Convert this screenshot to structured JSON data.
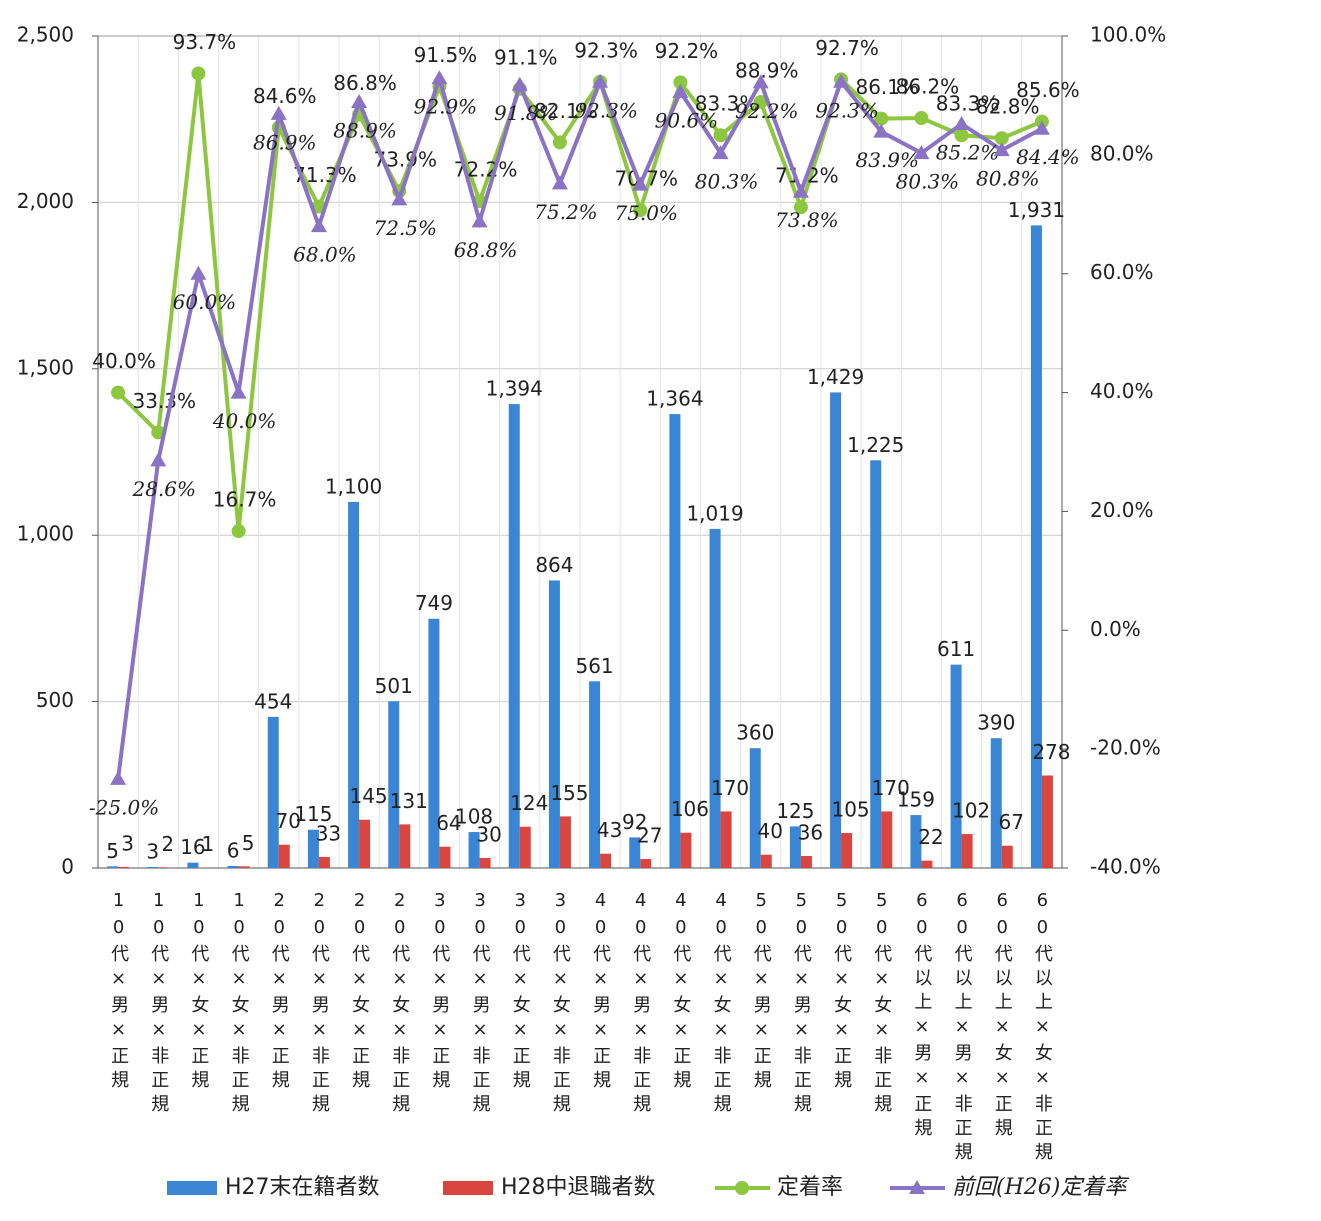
{
  "chart_data": {
    "type": "bar",
    "categories": [
      "10代×男×正規",
      "10代×男×非正規",
      "10代×女×正規",
      "10代×女×非正規",
      "20代×男×正規",
      "20代×男×非正規",
      "20代×女×正規",
      "20代×女×非正規",
      "30代×男×正規",
      "30代×男×非正規",
      "30代×女×正規",
      "30代×女×非正規",
      "40代×男×正規",
      "40代×男×非正規",
      "40代×女×正規",
      "40代×女×非正規",
      "50代×男×正規",
      "50代×男×非正規",
      "50代×女×正規",
      "50代×女×非正規",
      "60代以上×男×正規",
      "60代以上×男×非正規",
      "60代以上×女×正規",
      "60代以上×女×非正規"
    ],
    "series": [
      {
        "name": "H27末在籍者数",
        "type": "bar",
        "color": "#3a86d4",
        "values": [
          5,
          3,
          16,
          6,
          454,
          115,
          1100,
          501,
          749,
          108,
          1394,
          864,
          561,
          92,
          1364,
          1019,
          360,
          125,
          1429,
          1225,
          159,
          611,
          390,
          1931
        ],
        "value_labels": [
          "5",
          "3",
          "16",
          "6",
          "454",
          "115",
          "1,100",
          "501",
          "749",
          "108",
          "1,394",
          "864",
          "561",
          "92",
          "1,364",
          "1,019",
          "360",
          "125",
          "1,429",
          "1,225",
          "159",
          "611",
          "390",
          "1,931"
        ]
      },
      {
        "name": "H28中退職者数",
        "type": "bar",
        "color": "#d9453f",
        "values": [
          3,
          2,
          1,
          5,
          70,
          33,
          145,
          131,
          64,
          30,
          124,
          155,
          43,
          27,
          106,
          170,
          40,
          36,
          105,
          170,
          22,
          102,
          67,
          278
        ]
      },
      {
        "name": "定着率",
        "type": "line",
        "axis": "y2",
        "color": "#8dc63f",
        "values": [
          40.0,
          33.3,
          93.7,
          16.7,
          84.6,
          71.3,
          86.8,
          73.9,
          91.5,
          72.2,
          91.1,
          82.1,
          92.3,
          70.7,
          92.2,
          83.3,
          88.9,
          71.2,
          92.7,
          86.1,
          86.2,
          83.3,
          82.8,
          85.6
        ],
        "value_labels": [
          "40.0%",
          "33.3%",
          "93.7%",
          "16.7%",
          "84.6%",
          "71.3%",
          "86.8%",
          "73.9%",
          "91.5%",
          "72.2%",
          "91.1%",
          "82.1%",
          "92.3%",
          "70.7%",
          "92.2%",
          "83.3%",
          "88.9%",
          "71.2%",
          "92.7%",
          "86.1%",
          "86.2%",
          "83.3%",
          "82.8%",
          "85.6%"
        ]
      },
      {
        "name": "前回(H26)定着率",
        "type": "line",
        "axis": "y2",
        "color": "#8a73c4",
        "values": [
          -25.0,
          28.6,
          60.0,
          40.0,
          86.9,
          68.0,
          88.9,
          72.5,
          92.9,
          68.8,
          91.8,
          75.2,
          92.3,
          75.0,
          90.6,
          80.3,
          92.2,
          73.8,
          92.3,
          83.9,
          80.3,
          85.2,
          80.8,
          84.4
        ],
        "value_labels": [
          "-25.0%",
          "28.6%",
          "60.0%",
          "40.0%",
          "86.9%",
          "68.0%",
          "88.9%",
          "72.5%",
          "92.9%",
          "68.8%",
          "91.8%",
          "75.2%",
          "92.3%",
          "75.0%",
          "90.6%",
          "80.3%",
          "92.2%",
          "73.8%",
          "92.3%",
          "83.9%",
          "80.3%",
          "85.2%",
          "80.8%",
          "84.4%"
        ]
      }
    ],
    "ylim": [
      0,
      2500
    ],
    "yticks": [
      0,
      500,
      {
        "value": 1000,
        "label": "1,000"
      },
      {
        "value": 1500,
        "label": "1,500"
      },
      {
        "value": 2000,
        "label": "2,000"
      },
      {
        "value": 2500,
        "label": "2,500"
      }
    ],
    "y2lim": [
      -40,
      100
    ],
    "y2ticks": [
      {
        "value": -40,
        "label": "-40.0%"
      },
      {
        "value": -20,
        "label": "-20.0%"
      },
      {
        "value": 0,
        "label": "0.0%"
      },
      {
        "value": 20,
        "label": "20.0%"
      },
      {
        "value": 40,
        "label": "40.0%"
      },
      {
        "value": 60,
        "label": "60.0%"
      },
      {
        "value": 80,
        "label": "80.0%"
      },
      {
        "value": 100,
        "label": "100.0%"
      }
    ],
    "grid": true,
    "legend": "bottom"
  }
}
